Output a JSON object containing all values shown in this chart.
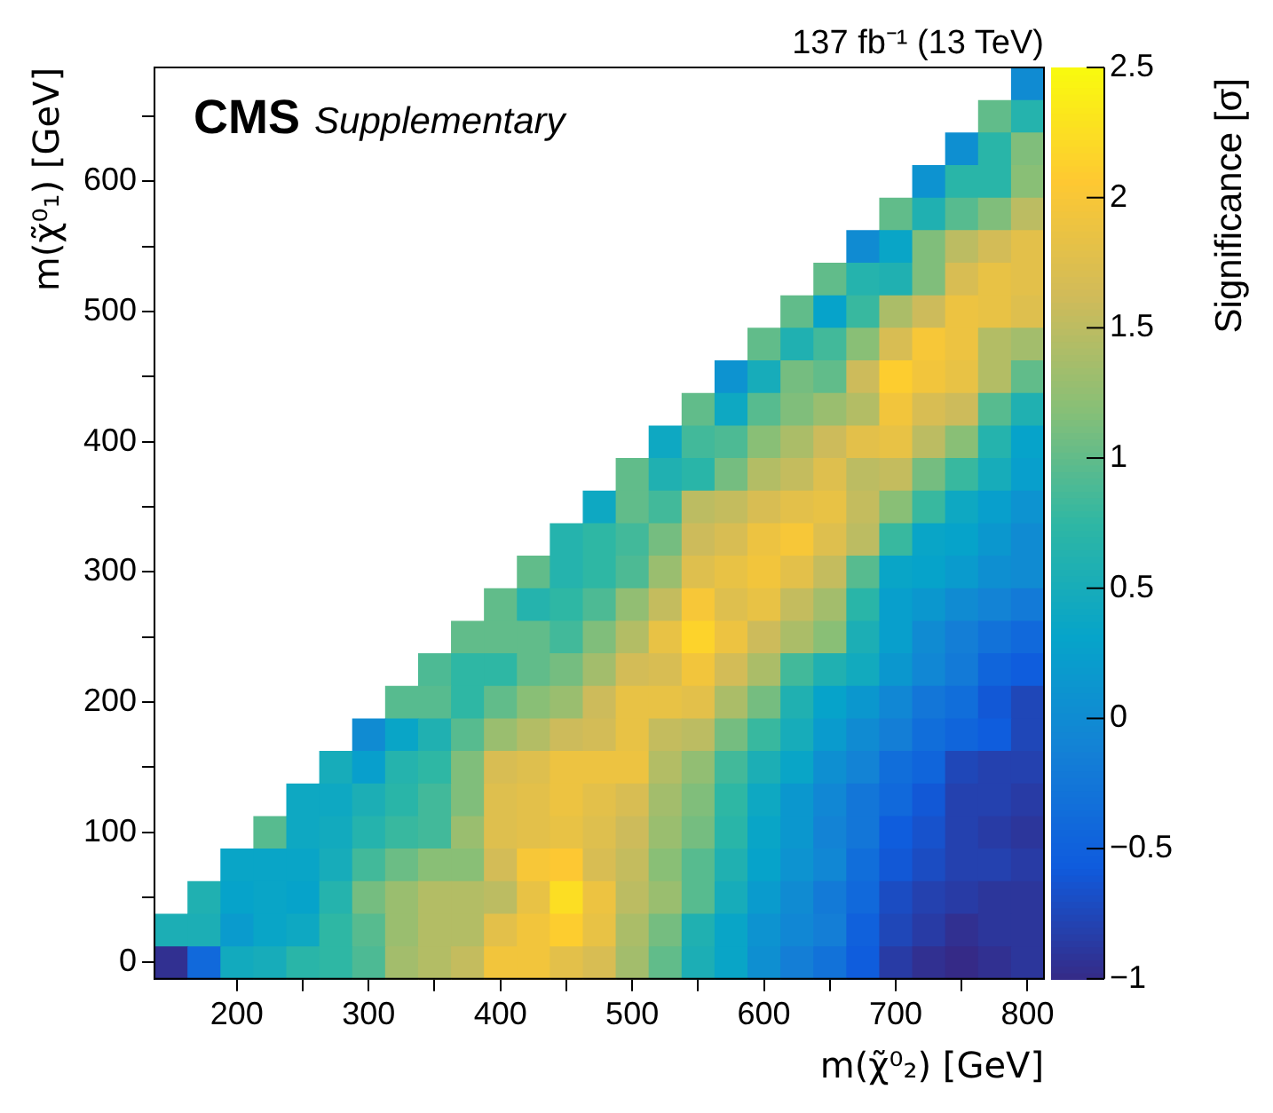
{
  "chart_data": {
    "type": "heatmap",
    "title": "CMS",
    "subtitle": "Supplementary",
    "annotations": [
      "137 fb⁻¹ (13 TeV)"
    ],
    "xlabel": "m(χ̃⁰₂) [GeV]",
    "ylabel": "m(χ̃⁰₁) [GeV]",
    "clabel": "Significance [σ]",
    "x": [
      150,
      175,
      200,
      225,
      250,
      275,
      300,
      325,
      350,
      375,
      400,
      425,
      450,
      475,
      500,
      525,
      550,
      575,
      600,
      625,
      650,
      675,
      700,
      725,
      750,
      775,
      800
    ],
    "y": [
      675,
      650,
      625,
      600,
      575,
      550,
      525,
      500,
      475,
      450,
      425,
      400,
      375,
      350,
      325,
      300,
      275,
      250,
      225,
      200,
      175,
      150,
      125,
      100,
      75,
      50,
      25,
      0
    ],
    "xlim": [
      137.5,
      812.5
    ],
    "ylim": [
      -12.5,
      687.5
    ],
    "xticks": [
      200,
      {
        "value": 250,
        "label": null
      },
      300,
      {
        "value": 350,
        "label": null
      },
      400,
      {
        "value": 450,
        "label": null
      },
      500,
      {
        "value": 550,
        "label": null
      },
      600,
      {
        "value": 650,
        "label": null
      },
      700,
      {
        "value": 750,
        "label": null
      },
      800
    ],
    "yticks": [
      0,
      {
        "value": 50,
        "label": null
      },
      100,
      {
        "value": 150,
        "label": null
      },
      200,
      {
        "value": 250,
        "label": null
      },
      300,
      {
        "value": 350,
        "label": null
      },
      400,
      {
        "value": 450,
        "label": null
      },
      500,
      {
        "value": 550,
        "label": null
      },
      600,
      {
        "value": 650,
        "label": null
      }
    ],
    "clim": [
      -1,
      2.5
    ],
    "cticks": [
      {
        "value": -1,
        "label": "−1"
      },
      {
        "value": -0.5,
        "label": "−0.5"
      },
      0,
      0.5,
      1,
      1.5,
      2,
      2.5
    ],
    "grid": false,
    "cells": [
      [
        null,
        null,
        null,
        null,
        null,
        null,
        null,
        null,
        null,
        null,
        null,
        null,
        null,
        null,
        null,
        null,
        null,
        null,
        null,
        null,
        null,
        null,
        null,
        null,
        null,
        null,
        0.0
      ],
      [
        null,
        null,
        null,
        null,
        null,
        null,
        null,
        null,
        null,
        null,
        null,
        null,
        null,
        null,
        null,
        null,
        null,
        null,
        null,
        null,
        null,
        null,
        null,
        null,
        null,
        1.0,
        0.65
      ],
      [
        null,
        null,
        null,
        null,
        null,
        null,
        null,
        null,
        null,
        null,
        null,
        null,
        null,
        null,
        null,
        null,
        null,
        null,
        null,
        null,
        null,
        null,
        null,
        null,
        0.05,
        0.7,
        1.15
      ],
      [
        null,
        null,
        null,
        null,
        null,
        null,
        null,
        null,
        null,
        null,
        null,
        null,
        null,
        null,
        null,
        null,
        null,
        null,
        null,
        null,
        null,
        null,
        null,
        0.1,
        0.7,
        0.7,
        1.2
      ],
      [
        null,
        null,
        null,
        null,
        null,
        null,
        null,
        null,
        null,
        null,
        null,
        null,
        null,
        null,
        null,
        null,
        null,
        null,
        null,
        null,
        null,
        null,
        1.0,
        0.6,
        0.95,
        1.15,
        1.5
      ],
      [
        null,
        null,
        null,
        null,
        null,
        null,
        null,
        null,
        null,
        null,
        null,
        null,
        null,
        null,
        null,
        null,
        null,
        null,
        null,
        null,
        null,
        0.0,
        0.35,
        1.15,
        1.5,
        1.65,
        1.8
      ],
      [
        null,
        null,
        null,
        null,
        null,
        null,
        null,
        null,
        null,
        null,
        null,
        null,
        null,
        null,
        null,
        null,
        null,
        null,
        null,
        null,
        1.0,
        0.65,
        0.6,
        1.15,
        1.7,
        1.85,
        1.8
      ],
      [
        null,
        null,
        null,
        null,
        null,
        null,
        null,
        null,
        null,
        null,
        null,
        null,
        null,
        null,
        null,
        null,
        null,
        null,
        null,
        1.0,
        0.3,
        0.8,
        1.4,
        1.6,
        1.9,
        1.85,
        1.75
      ],
      [
        null,
        null,
        null,
        null,
        null,
        null,
        null,
        null,
        null,
        null,
        null,
        null,
        null,
        null,
        null,
        null,
        null,
        null,
        1.0,
        0.6,
        0.85,
        1.2,
        1.7,
        2.0,
        1.9,
        1.45,
        1.35
      ],
      [
        null,
        null,
        null,
        null,
        null,
        null,
        null,
        null,
        null,
        null,
        null,
        null,
        null,
        null,
        null,
        null,
        null,
        0.1,
        0.5,
        1.1,
        1.0,
        1.6,
        2.1,
        1.95,
        1.85,
        1.45,
        1.0
      ],
      [
        null,
        null,
        null,
        null,
        null,
        null,
        null,
        null,
        null,
        null,
        null,
        null,
        null,
        null,
        null,
        null,
        1.0,
        0.4,
        0.95,
        1.15,
        1.3,
        1.45,
        1.95,
        1.7,
        1.6,
        0.95,
        0.6
      ],
      [
        null,
        null,
        null,
        null,
        null,
        null,
        null,
        null,
        null,
        null,
        null,
        null,
        null,
        null,
        null,
        0.4,
        0.85,
        0.9,
        1.2,
        1.4,
        1.6,
        1.8,
        1.85,
        1.5,
        1.2,
        0.65,
        0.3
      ],
      [
        null,
        null,
        null,
        null,
        null,
        null,
        null,
        null,
        null,
        null,
        null,
        null,
        null,
        null,
        1.0,
        0.6,
        0.7,
        1.1,
        1.45,
        1.55,
        1.75,
        1.5,
        1.55,
        1.1,
        0.8,
        0.5,
        0.25
      ],
      [
        null,
        null,
        null,
        null,
        null,
        null,
        null,
        null,
        null,
        null,
        null,
        null,
        null,
        0.4,
        1.0,
        0.85,
        1.5,
        1.55,
        1.7,
        1.8,
        1.85,
        1.55,
        1.2,
        0.8,
        0.4,
        0.25,
        0.1
      ],
      [
        null,
        null,
        null,
        null,
        null,
        null,
        null,
        null,
        null,
        null,
        null,
        null,
        0.65,
        0.75,
        0.85,
        1.1,
        1.6,
        1.7,
        1.9,
        2.0,
        1.75,
        1.5,
        0.8,
        0.35,
        0.3,
        0.15,
        0.0
      ],
      [
        null,
        null,
        null,
        null,
        null,
        null,
        null,
        null,
        null,
        null,
        null,
        1.0,
        0.65,
        0.75,
        0.9,
        1.3,
        1.75,
        1.85,
        1.95,
        1.8,
        1.55,
        0.95,
        0.35,
        0.3,
        0.2,
        0.05,
        0.0
      ],
      [
        null,
        null,
        null,
        null,
        null,
        null,
        null,
        null,
        null,
        null,
        1.0,
        0.65,
        0.75,
        0.9,
        1.25,
        1.55,
        2.0,
        1.75,
        1.85,
        1.55,
        1.35,
        0.7,
        0.25,
        0.15,
        0.0,
        -0.1,
        -0.2
      ],
      [
        null,
        null,
        null,
        null,
        null,
        null,
        null,
        null,
        null,
        1.0,
        1.0,
        1.0,
        0.85,
        1.15,
        1.45,
        1.85,
        2.15,
        1.9,
        1.6,
        1.4,
        1.2,
        0.55,
        0.25,
        0.0,
        -0.15,
        -0.3,
        -0.4
      ],
      [
        null,
        null,
        null,
        null,
        null,
        null,
        null,
        null,
        0.9,
        0.75,
        0.75,
        1.0,
        1.1,
        1.35,
        1.65,
        1.7,
        1.95,
        1.65,
        1.4,
        0.85,
        0.6,
        0.45,
        0.15,
        -0.05,
        -0.2,
        -0.45,
        -0.55
      ],
      [
        null,
        null,
        null,
        null,
        null,
        null,
        null,
        0.95,
        0.95,
        0.75,
        1.0,
        1.2,
        1.3,
        1.6,
        1.85,
        1.85,
        1.8,
        1.4,
        1.1,
        0.6,
        0.3,
        0.15,
        -0.05,
        -0.25,
        -0.35,
        -0.6,
        -0.75
      ],
      [
        null,
        null,
        null,
        null,
        null,
        null,
        0.0,
        0.35,
        0.6,
        0.95,
        1.3,
        1.45,
        1.6,
        1.65,
        1.85,
        1.55,
        1.5,
        1.1,
        0.8,
        0.5,
        0.2,
        0.0,
        -0.15,
        -0.35,
        -0.45,
        -0.55,
        -0.75
      ],
      [
        null,
        null,
        null,
        null,
        null,
        0.5,
        0.25,
        0.65,
        0.75,
        1.15,
        1.7,
        1.75,
        1.9,
        1.9,
        1.9,
        1.45,
        1.25,
        0.85,
        0.55,
        0.35,
        0.05,
        -0.1,
        -0.35,
        -0.45,
        -0.75,
        -0.8,
        -0.8
      ],
      [
        null,
        null,
        null,
        null,
        0.4,
        0.4,
        0.55,
        0.7,
        0.85,
        1.15,
        1.75,
        1.8,
        1.9,
        1.8,
        1.7,
        1.35,
        1.15,
        0.75,
        0.4,
        0.15,
        -0.05,
        -0.25,
        -0.4,
        -0.6,
        -0.8,
        -0.8,
        -0.85
      ],
      [
        null,
        null,
        null,
        0.95,
        0.4,
        0.45,
        0.65,
        0.8,
        0.85,
        1.3,
        1.75,
        1.8,
        1.85,
        1.75,
        1.6,
        1.3,
        1.1,
        0.7,
        0.35,
        0.15,
        -0.1,
        -0.25,
        -0.55,
        -0.65,
        -0.8,
        -0.85,
        -0.9
      ],
      [
        null,
        null,
        0.35,
        0.35,
        0.35,
        0.5,
        0.85,
        1.05,
        1.2,
        1.2,
        1.65,
        2.0,
        2.05,
        1.7,
        1.55,
        1.2,
        0.95,
        0.6,
        0.3,
        0.1,
        -0.05,
        -0.35,
        -0.6,
        -0.7,
        -0.8,
        -0.8,
        -0.85
      ],
      [
        null,
        0.6,
        0.3,
        0.35,
        0.3,
        0.65,
        1.1,
        1.3,
        1.45,
        1.45,
        1.5,
        1.85,
        2.25,
        1.9,
        1.5,
        1.3,
        0.95,
        0.5,
        0.2,
        0.0,
        -0.2,
        -0.4,
        -0.7,
        -0.8,
        -0.85,
        -0.9,
        -0.9
      ],
      [
        0.55,
        0.55,
        0.2,
        0.35,
        0.4,
        0.75,
        0.95,
        1.3,
        1.45,
        1.45,
        1.8,
        1.95,
        2.1,
        1.85,
        1.4,
        1.1,
        0.6,
        0.35,
        0.1,
        -0.05,
        -0.15,
        -0.5,
        -0.75,
        -0.85,
        -0.95,
        -0.9,
        -0.9
      ],
      [
        -0.95,
        -0.4,
        0.45,
        0.5,
        0.7,
        0.75,
        0.9,
        1.35,
        1.45,
        1.55,
        1.95,
        1.95,
        1.8,
        1.7,
        1.35,
        1.0,
        0.55,
        0.35,
        0.05,
        -0.15,
        -0.3,
        -0.55,
        -0.85,
        -0.95,
        -1.0,
        -0.95,
        -0.9
      ]
    ]
  }
}
